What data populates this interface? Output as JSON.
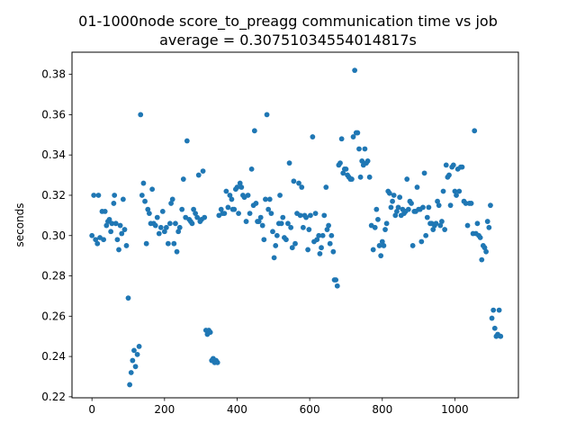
{
  "chart_data": {
    "type": "scatter",
    "title": "01-1000node score_to_preagg communication time vs job",
    "subtitle": "average = 0.30751034554014817s",
    "xlabel": "",
    "ylabel": "seconds",
    "xlim": [
      -55,
      1175
    ],
    "ylim": [
      0.2195,
      0.391
    ],
    "xticks": [
      0,
      200,
      400,
      600,
      800,
      1000
    ],
    "yticks": [
      0.22,
      0.24,
      0.26,
      0.28,
      0.3,
      0.32,
      0.34,
      0.36,
      0.38
    ],
    "grid": false,
    "legend": "none",
    "marker_color": "#1f77b4",
    "points": [
      [
        0,
        0.3
      ],
      [
        5,
        0.32
      ],
      [
        10,
        0.298
      ],
      [
        15,
        0.296
      ],
      [
        18,
        0.32
      ],
      [
        22,
        0.299
      ],
      [
        28,
        0.312
      ],
      [
        32,
        0.298
      ],
      [
        36,
        0.312
      ],
      [
        40,
        0.305
      ],
      [
        44,
        0.307
      ],
      [
        48,
        0.308
      ],
      [
        52,
        0.302
      ],
      [
        55,
        0.306
      ],
      [
        60,
        0.316
      ],
      [
        62,
        0.32
      ],
      [
        66,
        0.306
      ],
      [
        70,
        0.298
      ],
      [
        74,
        0.293
      ],
      [
        78,
        0.305
      ],
      [
        82,
        0.301
      ],
      [
        86,
        0.318
      ],
      [
        90,
        0.303
      ],
      [
        95,
        0.295
      ],
      [
        100,
        0.269
      ],
      [
        104,
        0.226
      ],
      [
        108,
        0.232
      ],
      [
        112,
        0.238
      ],
      [
        116,
        0.243
      ],
      [
        120,
        0.235
      ],
      [
        125,
        0.241
      ],
      [
        130,
        0.245
      ],
      [
        134,
        0.36
      ],
      [
        138,
        0.32
      ],
      [
        142,
        0.326
      ],
      [
        146,
        0.317
      ],
      [
        150,
        0.296
      ],
      [
        154,
        0.313
      ],
      [
        158,
        0.311
      ],
      [
        162,
        0.306
      ],
      [
        166,
        0.323
      ],
      [
        170,
        0.306
      ],
      [
        175,
        0.305
      ],
      [
        180,
        0.309
      ],
      [
        185,
        0.301
      ],
      [
        190,
        0.304
      ],
      [
        195,
        0.312
      ],
      [
        200,
        0.302
      ],
      [
        205,
        0.304
      ],
      [
        210,
        0.296
      ],
      [
        215,
        0.306
      ],
      [
        218,
        0.316
      ],
      [
        222,
        0.318
      ],
      [
        226,
        0.296
      ],
      [
        230,
        0.306
      ],
      [
        234,
        0.292
      ],
      [
        238,
        0.302
      ],
      [
        242,
        0.304
      ],
      [
        248,
        0.313
      ],
      [
        252,
        0.328
      ],
      [
        258,
        0.309
      ],
      [
        262,
        0.347
      ],
      [
        268,
        0.308
      ],
      [
        272,
        0.307
      ],
      [
        276,
        0.306
      ],
      [
        280,
        0.313
      ],
      [
        285,
        0.311
      ],
      [
        290,
        0.309
      ],
      [
        294,
        0.33
      ],
      [
        298,
        0.307
      ],
      [
        302,
        0.308
      ],
      [
        306,
        0.332
      ],
      [
        310,
        0.309
      ],
      [
        314,
        0.253
      ],
      [
        318,
        0.251
      ],
      [
        322,
        0.253
      ],
      [
        326,
        0.252
      ],
      [
        330,
        0.238
      ],
      [
        334,
        0.239
      ],
      [
        338,
        0.237
      ],
      [
        342,
        0.238
      ],
      [
        346,
        0.237
      ],
      [
        350,
        0.31
      ],
      [
        356,
        0.313
      ],
      [
        360,
        0.311
      ],
      [
        365,
        0.311
      ],
      [
        370,
        0.322
      ],
      [
        375,
        0.314
      ],
      [
        380,
        0.32
      ],
      [
        385,
        0.318
      ],
      [
        388,
        0.313
      ],
      [
        392,
        0.313
      ],
      [
        396,
        0.323
      ],
      [
        400,
        0.324
      ],
      [
        404,
        0.311
      ],
      [
        408,
        0.326
      ],
      [
        412,
        0.324
      ],
      [
        416,
        0.32
      ],
      [
        420,
        0.319
      ],
      [
        425,
        0.307
      ],
      [
        430,
        0.32
      ],
      [
        435,
        0.311
      ],
      [
        440,
        0.333
      ],
      [
        445,
        0.315
      ],
      [
        448,
        0.352
      ],
      [
        452,
        0.316
      ],
      [
        456,
        0.307
      ],
      [
        460,
        0.307
      ],
      [
        465,
        0.309
      ],
      [
        470,
        0.305
      ],
      [
        474,
        0.298
      ],
      [
        478,
        0.318
      ],
      [
        482,
        0.36
      ],
      [
        486,
        0.313
      ],
      [
        490,
        0.318
      ],
      [
        494,
        0.311
      ],
      [
        498,
        0.302
      ],
      [
        502,
        0.289
      ],
      [
        506,
        0.295
      ],
      [
        510,
        0.3
      ],
      [
        515,
        0.306
      ],
      [
        518,
        0.32
      ],
      [
        522,
        0.306
      ],
      [
        526,
        0.309
      ],
      [
        530,
        0.299
      ],
      [
        535,
        0.298
      ],
      [
        540,
        0.306
      ],
      [
        544,
        0.336
      ],
      [
        548,
        0.304
      ],
      [
        552,
        0.294
      ],
      [
        556,
        0.327
      ],
      [
        560,
        0.296
      ],
      [
        565,
        0.311
      ],
      [
        570,
        0.326
      ],
      [
        574,
        0.31
      ],
      [
        578,
        0.324
      ],
      [
        582,
        0.304
      ],
      [
        586,
        0.31
      ],
      [
        590,
        0.309
      ],
      [
        595,
        0.293
      ],
      [
        598,
        0.303
      ],
      [
        602,
        0.31
      ],
      [
        608,
        0.349
      ],
      [
        612,
        0.297
      ],
      [
        616,
        0.311
      ],
      [
        620,
        0.298
      ],
      [
        625,
        0.3
      ],
      [
        628,
        0.291
      ],
      [
        632,
        0.294
      ],
      [
        636,
        0.3
      ],
      [
        640,
        0.31
      ],
      [
        645,
        0.324
      ],
      [
        648,
        0.303
      ],
      [
        652,
        0.305
      ],
      [
        656,
        0.296
      ],
      [
        660,
        0.3
      ],
      [
        665,
        0.292
      ],
      [
        668,
        0.278
      ],
      [
        672,
        0.278
      ],
      [
        676,
        0.275
      ],
      [
        680,
        0.335
      ],
      [
        684,
        0.336
      ],
      [
        688,
        0.348
      ],
      [
        692,
        0.331
      ],
      [
        696,
        0.333
      ],
      [
        700,
        0.333
      ],
      [
        704,
        0.33
      ],
      [
        708,
        0.329
      ],
      [
        712,
        0.328
      ],
      [
        716,
        0.328
      ],
      [
        720,
        0.349
      ],
      [
        724,
        0.382
      ],
      [
        728,
        0.351
      ],
      [
        732,
        0.351
      ],
      [
        736,
        0.343
      ],
      [
        740,
        0.329
      ],
      [
        744,
        0.337
      ],
      [
        748,
        0.335
      ],
      [
        752,
        0.343
      ],
      [
        756,
        0.336
      ],
      [
        760,
        0.337
      ],
      [
        765,
        0.329
      ],
      [
        770,
        0.305
      ],
      [
        775,
        0.293
      ],
      [
        780,
        0.304
      ],
      [
        784,
        0.313
      ],
      [
        788,
        0.308
      ],
      [
        792,
        0.295
      ],
      [
        796,
        0.29
      ],
      [
        800,
        0.297
      ],
      [
        804,
        0.295
      ],
      [
        808,
        0.303
      ],
      [
        812,
        0.306
      ],
      [
        816,
        0.322
      ],
      [
        820,
        0.321
      ],
      [
        824,
        0.314
      ],
      [
        828,
        0.317
      ],
      [
        832,
        0.32
      ],
      [
        836,
        0.31
      ],
      [
        840,
        0.312
      ],
      [
        844,
        0.314
      ],
      [
        848,
        0.319
      ],
      [
        852,
        0.31
      ],
      [
        856,
        0.313
      ],
      [
        860,
        0.311
      ],
      [
        864,
        0.312
      ],
      [
        868,
        0.328
      ],
      [
        872,
        0.313
      ],
      [
        876,
        0.317
      ],
      [
        880,
        0.316
      ],
      [
        884,
        0.295
      ],
      [
        888,
        0.312
      ],
      [
        892,
        0.312
      ],
      [
        896,
        0.324
      ],
      [
        900,
        0.313
      ],
      [
        904,
        0.313
      ],
      [
        908,
        0.297
      ],
      [
        912,
        0.314
      ],
      [
        916,
        0.331
      ],
      [
        920,
        0.3
      ],
      [
        924,
        0.309
      ],
      [
        928,
        0.314
      ],
      [
        932,
        0.306
      ],
      [
        936,
        0.306
      ],
      [
        940,
        0.303
      ],
      [
        944,
        0.305
      ],
      [
        948,
        0.306
      ],
      [
        952,
        0.317
      ],
      [
        956,
        0.315
      ],
      [
        960,
        0.305
      ],
      [
        964,
        0.307
      ],
      [
        968,
        0.322
      ],
      [
        972,
        0.303
      ],
      [
        976,
        0.335
      ],
      [
        980,
        0.329
      ],
      [
        984,
        0.33
      ],
      [
        988,
        0.315
      ],
      [
        992,
        0.334
      ],
      [
        996,
        0.335
      ],
      [
        1000,
        0.322
      ],
      [
        1004,
        0.32
      ],
      [
        1008,
        0.333
      ],
      [
        1012,
        0.322
      ],
      [
        1016,
        0.334
      ],
      [
        1020,
        0.334
      ],
      [
        1025,
        0.317
      ],
      [
        1030,
        0.316
      ],
      [
        1035,
        0.305
      ],
      [
        1040,
        0.316
      ],
      [
        1045,
        0.316
      ],
      [
        1050,
        0.301
      ],
      [
        1054,
        0.352
      ],
      [
        1058,
        0.301
      ],
      [
        1062,
        0.306
      ],
      [
        1066,
        0.3
      ],
      [
        1070,
        0.299
      ],
      [
        1074,
        0.288
      ],
      [
        1078,
        0.295
      ],
      [
        1082,
        0.294
      ],
      [
        1086,
        0.292
      ],
      [
        1090,
        0.307
      ],
      [
        1094,
        0.304
      ],
      [
        1098,
        0.315
      ],
      [
        1102,
        0.259
      ],
      [
        1106,
        0.263
      ],
      [
        1110,
        0.254
      ],
      [
        1114,
        0.25
      ],
      [
        1118,
        0.251
      ],
      [
        1122,
        0.263
      ],
      [
        1126,
        0.25
      ]
    ]
  }
}
